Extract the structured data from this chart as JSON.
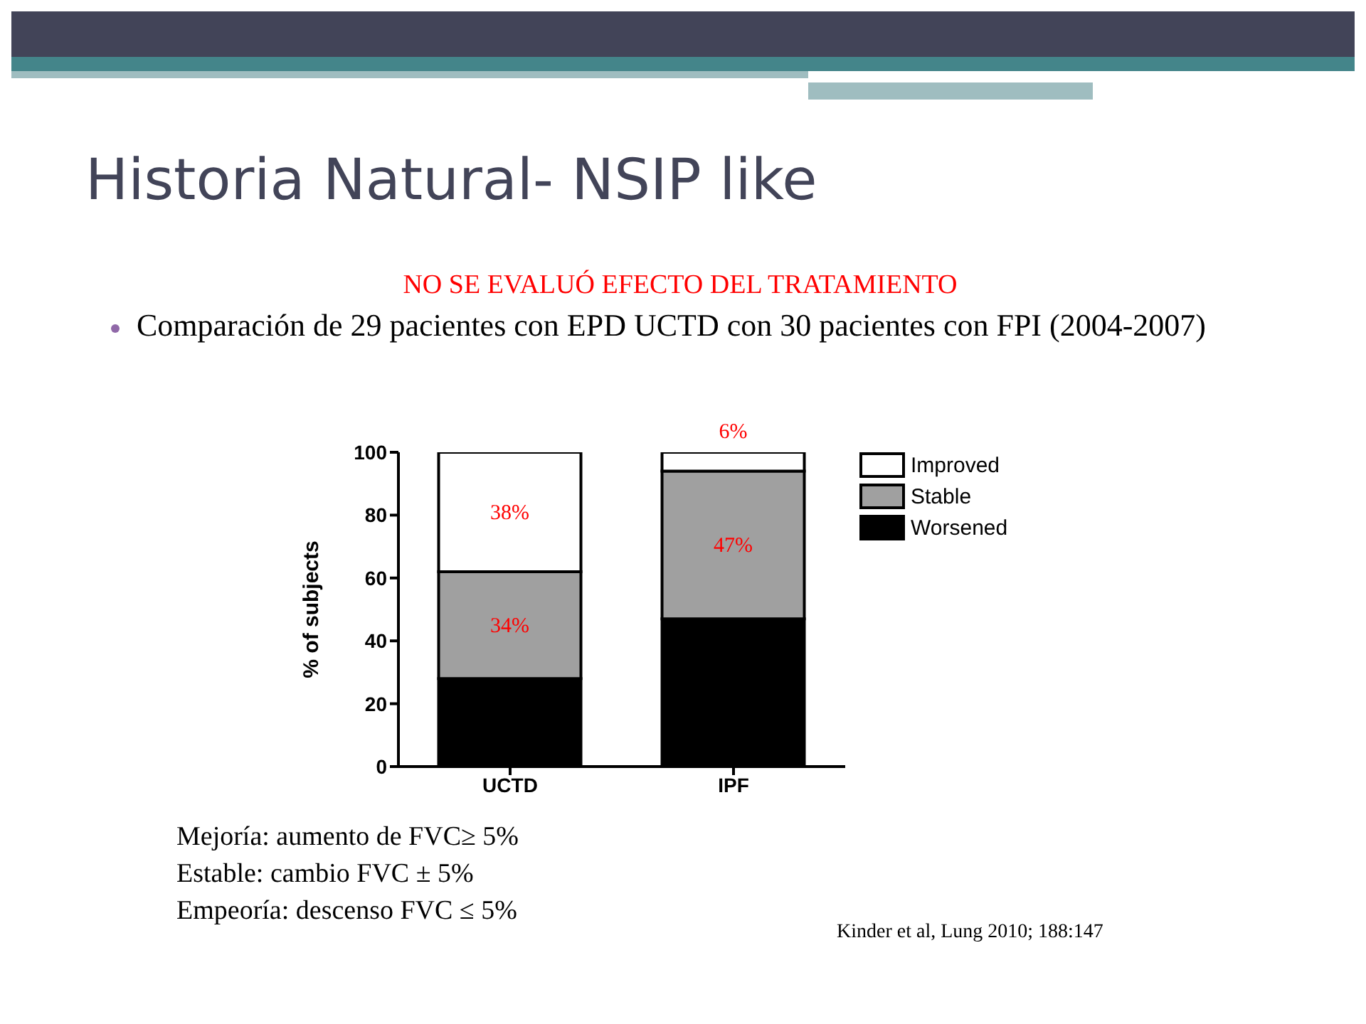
{
  "chart_data": {
    "type": "bar",
    "title": "Historia Natural- NSIP like",
    "ylabel": "% of subjects",
    "categories": [
      "UCTD",
      "IPF"
    ],
    "stacked": true,
    "series": [
      {
        "name": "Worsened",
        "color": "#000000",
        "values": [
          28,
          47
        ],
        "value_labels": [
          null,
          null
        ]
      },
      {
        "name": "Stable",
        "color": "#a0a0a0",
        "values": [
          34,
          47
        ],
        "value_labels": [
          "34%",
          "47%"
        ]
      },
      {
        "name": "Improved",
        "color": "#ffffff",
        "values": [
          38,
          6
        ],
        "value_labels": [
          "38%",
          "6%"
        ]
      }
    ],
    "ylim": [
      0,
      100
    ],
    "yticks": [
      0,
      20,
      40,
      60,
      80,
      100
    ],
    "grid": false,
    "legend": "right",
    "annotations": [
      "NO SE EVALUÓ EFECTO DEL TRATAMIENTO",
      "Comparación de 29 pacientes con EPD UCTD con 30 pacientes con FPI (2004-2007)",
      "Mejoría: aumento de FVC≥ 5%",
      "Estable: cambio FVC ± 5%",
      "Empeoría: descenso FVC ≤ 5%",
      "Kinder et al, Lung 2010; 188:147"
    ]
  }
}
